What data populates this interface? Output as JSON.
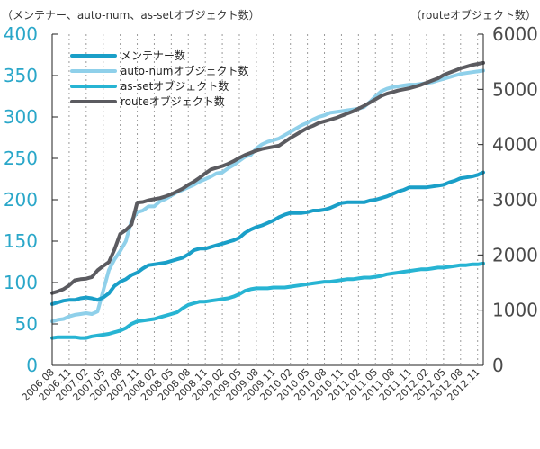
{
  "axis_titles": {
    "left": "（メンテナー、auto-num、as-setオブジェクト数）",
    "right": "（routeオブジェクト数）"
  },
  "chart_data": {
    "type": "line",
    "x": [
      "2006.08",
      "2006.09",
      "2006.10",
      "2006.11",
      "2006.12",
      "2007.01",
      "2007.02",
      "2007.03",
      "2007.04",
      "2007.05",
      "2007.06",
      "2007.07",
      "2007.08",
      "2007.09",
      "2007.10",
      "2007.11",
      "2007.12",
      "2008.01",
      "2008.02",
      "2008.03",
      "2008.04",
      "2008.05",
      "2008.06",
      "2008.07",
      "2008.08",
      "2008.09",
      "2008.10",
      "2008.11",
      "2008.12",
      "2009.01",
      "2009.02",
      "2009.03",
      "2009.04",
      "2009.05",
      "2009.06",
      "2009.07",
      "2009.08",
      "2009.09",
      "2009.10",
      "2009.11",
      "2009.12",
      "2010.01",
      "2010.02",
      "2010.03",
      "2010.04",
      "2010.05",
      "2010.06",
      "2010.07",
      "2010.08",
      "2010.09",
      "2010.10",
      "2010.11",
      "2010.12",
      "2011.01",
      "2011.02",
      "2011.03",
      "2011.04",
      "2011.05",
      "2011.06",
      "2011.07",
      "2011.08",
      "2011.09",
      "2011.10",
      "2011.11",
      "2011.12",
      "2012.01",
      "2012.02",
      "2012.03",
      "2012.04",
      "2012.05",
      "2012.06",
      "2012.07",
      "2012.08",
      "2012.09",
      "2012.10",
      "2012.11",
      "2012.12"
    ],
    "x_tick_labels": [
      "2006.08",
      "2006.11",
      "2007.02",
      "2007.05",
      "2007.08",
      "2007.11",
      "2008.02",
      "2008.05",
      "2008.08",
      "2008.11",
      "2009.02",
      "2009.05",
      "2009.08",
      "2009.11",
      "2010.02",
      "2010.05",
      "2010.08",
      "2010.11",
      "2011.02",
      "2011.05",
      "2011.08",
      "2011.11",
      "2012.02",
      "2012.05",
      "2012.08",
      "2012.11"
    ],
    "y_left": {
      "range": [
        0,
        400
      ],
      "ticks": [
        0,
        50,
        100,
        150,
        200,
        250,
        300,
        350,
        400
      ]
    },
    "y_right": {
      "range": [
        0,
        6000
      ],
      "ticks": [
        0,
        1000,
        2000,
        3000,
        4000,
        5000,
        6000
      ]
    },
    "grid": "vertical-dashed",
    "legend_position": "top-left",
    "series": [
      {
        "name": "メンテナー数",
        "axis": "left",
        "color": "#1a9fc8",
        "values": [
          74,
          76,
          78,
          79,
          79,
          81,
          82,
          81,
          79,
          82,
          87,
          96,
          101,
          104,
          109,
          112,
          117,
          121,
          122,
          123,
          124,
          126,
          128,
          130,
          134,
          139,
          141,
          141,
          143,
          145,
          147,
          149,
          151,
          154,
          160,
          164,
          167,
          169,
          172,
          175,
          179,
          182,
          184,
          184,
          184,
          185,
          187,
          187,
          188,
          190,
          193,
          196,
          197,
          197,
          197,
          197,
          199,
          200,
          202,
          204,
          207,
          210,
          212,
          215,
          215,
          215,
          215,
          216,
          217,
          218,
          221,
          223,
          226,
          227,
          228,
          230,
          233
        ]
      },
      {
        "name": "auto-numオブジェクト数",
        "axis": "left",
        "color": "#8fd0ea",
        "values": [
          53,
          55,
          56,
          59,
          61,
          62,
          63,
          62,
          65,
          90,
          115,
          128,
          138,
          150,
          175,
          185,
          187,
          192,
          192,
          198,
          201,
          205,
          209,
          212,
          215,
          218,
          222,
          225,
          228,
          232,
          233,
          238,
          242,
          247,
          252,
          254,
          262,
          267,
          270,
          272,
          274,
          278,
          282,
          286,
          290,
          293,
          297,
          300,
          302,
          305,
          306,
          307,
          308,
          309,
          310,
          312,
          318,
          325,
          331,
          334,
          336,
          337,
          338,
          339,
          339,
          340,
          341,
          342,
          344,
          346,
          348,
          350,
          352,
          353,
          354,
          355,
          356
        ]
      },
      {
        "name": "as-setオブジェクト数",
        "axis": "left",
        "color": "#27b4d3",
        "values": [
          33,
          34,
          34,
          34,
          34,
          33,
          33,
          35,
          36,
          37,
          38,
          40,
          42,
          45,
          50,
          53,
          54,
          55,
          56,
          58,
          60,
          62,
          64,
          69,
          73,
          75,
          77,
          77,
          78,
          79,
          80,
          81,
          83,
          86,
          90,
          92,
          93,
          93,
          93,
          94,
          94,
          94,
          95,
          96,
          97,
          98,
          99,
          100,
          101,
          101,
          102,
          103,
          104,
          104,
          105,
          106,
          106,
          107,
          108,
          110,
          111,
          112,
          113,
          114,
          115,
          116,
          116,
          117,
          118,
          118,
          119,
          120,
          121,
          121,
          122,
          122,
          123
        ]
      },
      {
        "name": "routeオブジェクト数",
        "axis": "right",
        "color": "#5b5b60",
        "values": [
          1310,
          1340,
          1380,
          1450,
          1540,
          1560,
          1570,
          1600,
          1720,
          1800,
          1870,
          2100,
          2380,
          2450,
          2550,
          2950,
          2960,
          2990,
          3010,
          3030,
          3060,
          3100,
          3150,
          3200,
          3270,
          3330,
          3400,
          3480,
          3550,
          3580,
          3610,
          3650,
          3700,
          3760,
          3810,
          3850,
          3890,
          3920,
          3940,
          3960,
          3980,
          4050,
          4120,
          4180,
          4240,
          4300,
          4340,
          4390,
          4420,
          4450,
          4480,
          4520,
          4560,
          4600,
          4650,
          4700,
          4760,
          4820,
          4880,
          4920,
          4950,
          4980,
          5000,
          5020,
          5050,
          5080,
          5120,
          5160,
          5200,
          5260,
          5300,
          5340,
          5380,
          5410,
          5440,
          5460,
          5480
        ]
      }
    ]
  }
}
